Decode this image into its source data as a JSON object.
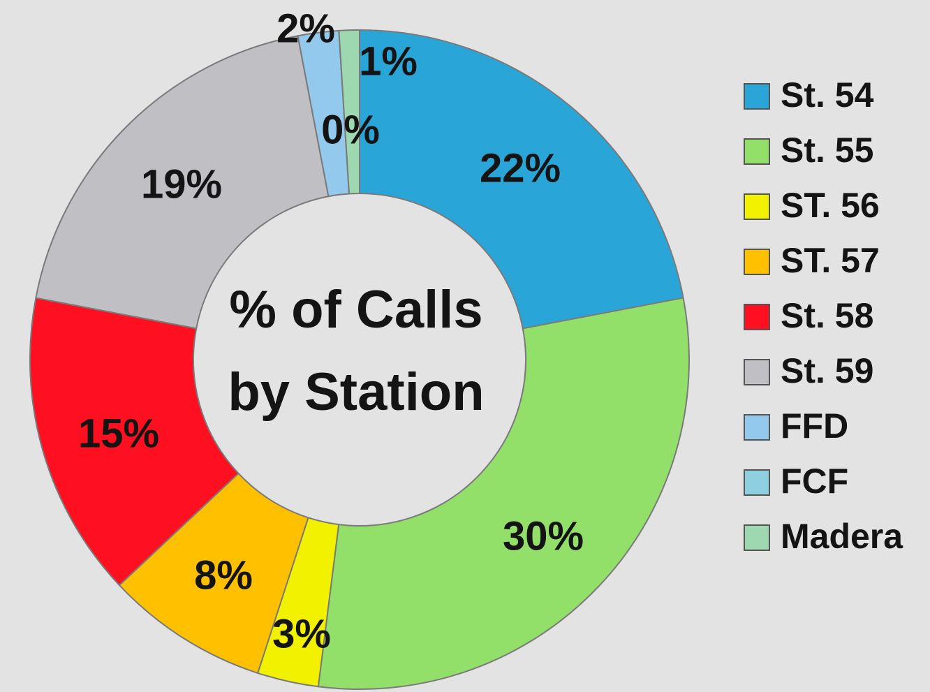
{
  "chart_data": {
    "type": "donut",
    "title": "% of Calls by Station",
    "categories": [
      "St. 54",
      "St. 55",
      "ST. 56",
      "ST. 57",
      "St. 58",
      "St. 59",
      "FFD",
      "FCF",
      "Madera"
    ],
    "values": [
      22,
      30,
      3,
      8,
      15,
      19,
      2,
      0,
      1
    ],
    "value_labels": [
      "22%",
      "30%",
      "3%",
      "8%",
      "15%",
      "19%",
      "2%",
      "0%",
      "1%"
    ],
    "colors": [
      "#2aa5d8",
      "#92e06a",
      "#f2f200",
      "#ffc000",
      "#ff1020",
      "#bfbfc4",
      "#93c9ec",
      "#8fd0e0",
      "#9dd8b0"
    ],
    "legend": "right"
  }
}
